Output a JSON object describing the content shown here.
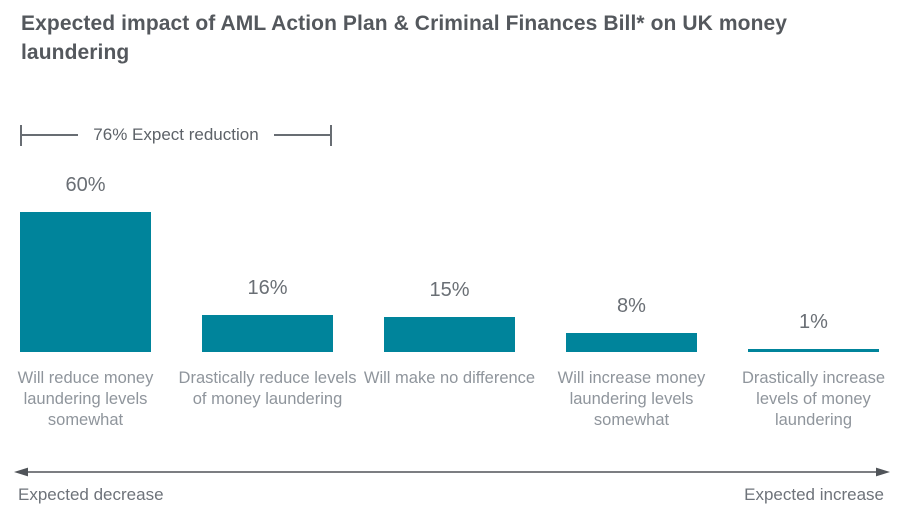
{
  "chart_data": {
    "type": "bar",
    "title": "Expected impact of AML Action Plan & Criminal Finances Bill* on UK money laundering",
    "annotation": "76% Expect reduction",
    "categories": [
      "Will reduce money laundering levels somewhat",
      "Drastically reduce levels of money laundering",
      "Will make no difference",
      "Will increase money laundering levels somewhat",
      "Drastically increase levels of money laundering"
    ],
    "values": [
      60,
      16,
      15,
      8,
      1
    ],
    "value_labels": [
      "60%",
      "16%",
      "15%",
      "8%",
      "1%"
    ],
    "ylim": [
      0,
      100
    ],
    "grid": false,
    "legend": false,
    "axis_arrow": {
      "left_label": "Expected decrease",
      "right_label": "Expected increase"
    }
  },
  "colors": {
    "bar": "#00849b",
    "title_text": "#54585d",
    "value_label_text": "#6a6f75",
    "category_label_text": "#8f959c",
    "annotation_text": "#5d6268",
    "arrow": "#505459",
    "axis_label_text": "#6e737a"
  }
}
